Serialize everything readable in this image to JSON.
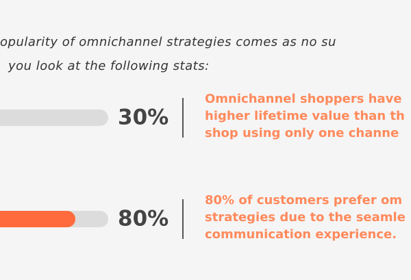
{
  "chart_data": {
    "type": "progress",
    "title_lines": [
      "opularity of omnichannel strategies comes as no su",
      "you look at the following stats:"
    ],
    "values": [
      30,
      80
    ],
    "value_labels": [
      "30%",
      "80%"
    ],
    "descriptions": [
      [
        "Omnichannel shoppers have",
        "higher lifetime value than th",
        "shop using only one channe"
      ],
      [
        "80% of customers prefer om",
        "strategies due to the seamle",
        "communication experience."
      ]
    ],
    "xlim": [
      0,
      100
    ],
    "color": "#ff6b3d",
    "track_color": "#dcdcdc",
    "text_color": "#ff8a5c"
  }
}
